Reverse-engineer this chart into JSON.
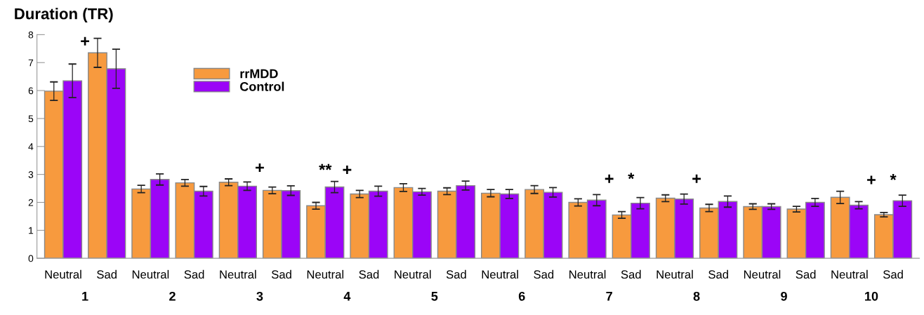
{
  "chart_data": {
    "type": "bar",
    "title": "Duration (TR)",
    "categories": [
      "Neutral",
      "Sad",
      "Neutral",
      "Sad",
      "Neutral",
      "Sad",
      "Neutral",
      "Sad",
      "Neutral",
      "Sad",
      "Neutral",
      "Sad",
      "Neutral",
      "Sad",
      "Neutral",
      "Sad",
      "Neutral",
      "Sad",
      "Neutral",
      "Sad"
    ],
    "series": [
      {
        "name": "rrMDD",
        "color": "#f79a3e",
        "values": [
          5.98,
          7.35,
          2.48,
          2.7,
          2.72,
          2.43,
          1.88,
          2.3,
          2.53,
          2.4,
          2.33,
          2.46,
          2.0,
          1.55,
          2.15,
          1.8,
          1.85,
          1.76,
          2.18,
          1.56
        ],
        "errors": [
          0.33,
          0.52,
          0.13,
          0.12,
          0.12,
          0.12,
          0.12,
          0.13,
          0.14,
          0.12,
          0.13,
          0.14,
          0.13,
          0.12,
          0.12,
          0.13,
          0.1,
          0.1,
          0.22,
          0.08
        ]
      },
      {
        "name": "Control",
        "color": "#9b05f7",
        "values": [
          6.35,
          6.78,
          2.82,
          2.4,
          2.58,
          2.42,
          2.55,
          2.4,
          2.38,
          2.6,
          2.3,
          2.36,
          2.08,
          1.97,
          2.12,
          2.03,
          1.85,
          2.0,
          1.9,
          2.06
        ],
        "errors": [
          0.6,
          0.7,
          0.2,
          0.17,
          0.15,
          0.17,
          0.2,
          0.18,
          0.12,
          0.16,
          0.16,
          0.17,
          0.2,
          0.2,
          0.18,
          0.2,
          0.1,
          0.14,
          0.13,
          0.2
        ]
      }
    ],
    "ylim": [
      0,
      8
    ],
    "yticks": [
      0,
      1,
      2,
      3,
      4,
      5,
      6,
      7,
      8
    ],
    "grid": false,
    "legend": "top left",
    "annotations": [
      "1",
      "2",
      "3",
      "4",
      "5",
      "6",
      "7",
      "8",
      "9",
      "10",
      "+",
      "+",
      "**",
      "+",
      "+",
      "*",
      "+",
      "+",
      "*"
    ]
  }
}
